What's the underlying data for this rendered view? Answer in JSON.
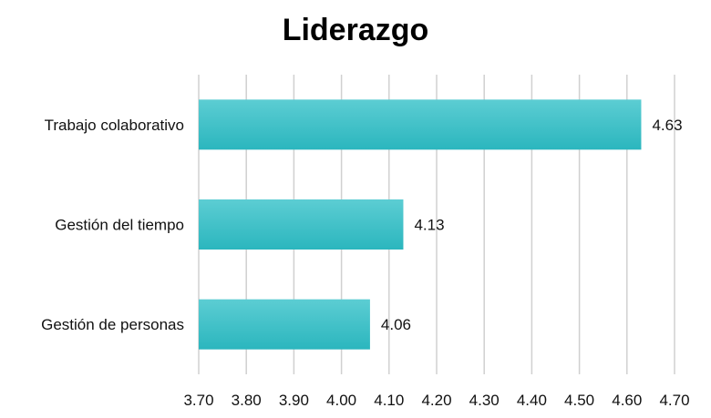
{
  "chart_data": {
    "type": "bar",
    "orientation": "horizontal",
    "title": "Liderazgo",
    "categories": [
      "Trabajo colaborativo",
      "Gestión del tiempo",
      "Gestión de personas"
    ],
    "values": [
      4.63,
      4.13,
      4.06
    ],
    "data_labels": [
      "4.63",
      "4.13",
      "4.06"
    ],
    "xlim": [
      3.7,
      4.7
    ],
    "x_ticks": [
      "3.70",
      "3.80",
      "3.90",
      "4.00",
      "4.10",
      "4.20",
      "4.30",
      "4.40",
      "4.50",
      "4.60",
      "4.70"
    ],
    "grid": "vertical",
    "legend": "none",
    "xlabel": "",
    "ylabel": ""
  },
  "colors": {
    "bar_top": "#5ccdd3",
    "bar_bottom": "#2bb6be",
    "grid": "#d0d0d0",
    "text": "#111111"
  }
}
